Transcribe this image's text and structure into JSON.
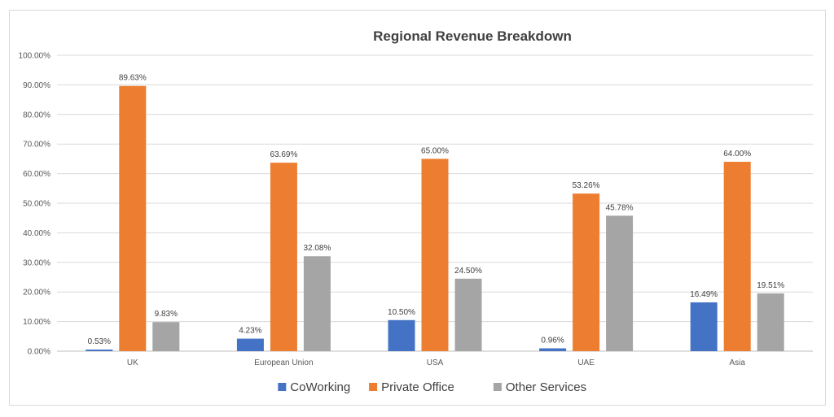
{
  "chart_data": {
    "type": "bar",
    "title": "Regional Revenue Breakdown",
    "categories": [
      "UK",
      "European Union",
      "USA",
      "UAE",
      "Asia"
    ],
    "series": [
      {
        "name": "CoWorking",
        "color": "#4472c4",
        "values": [
          0.53,
          4.23,
          10.5,
          0.96,
          16.49
        ],
        "labels": [
          "0.53%",
          "4.23%",
          "10.50%",
          "0.96%",
          "16.49%"
        ]
      },
      {
        "name": "Private Office",
        "color": "#ed7d31",
        "values": [
          89.63,
          63.69,
          65.0,
          53.26,
          64.0
        ],
        "labels": [
          "89.63%",
          "63.69%",
          "65.00%",
          "53.26%",
          "64.00%"
        ]
      },
      {
        "name": "Other Services",
        "color": "#a5a5a5",
        "values": [
          9.83,
          32.08,
          24.5,
          45.78,
          19.51
        ],
        "labels": [
          "9.83%",
          "32.08%",
          "24.50%",
          "45.78%",
          "19.51%"
        ]
      }
    ],
    "ylim": [
      0,
      100
    ],
    "yticks": [
      "0.00%",
      "10.00%",
      "20.00%",
      "30.00%",
      "40.00%",
      "50.00%",
      "60.00%",
      "70.00%",
      "80.00%",
      "90.00%",
      "100.00%"
    ],
    "grid": true,
    "legend": "bottom",
    "xlabel": "",
    "ylabel": ""
  }
}
